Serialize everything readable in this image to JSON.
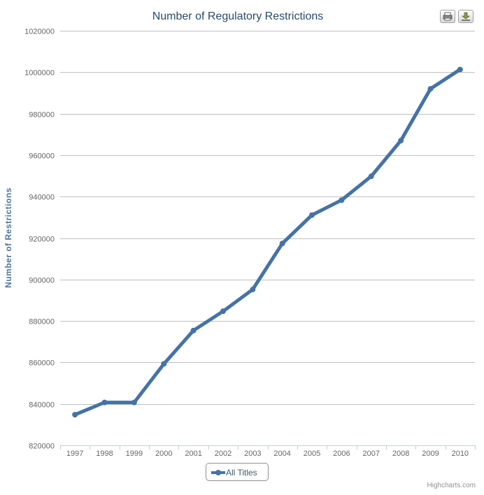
{
  "chart_data": {
    "type": "line",
    "title": "Number of Regulatory Restrictions",
    "ylabel": "Number of Restrictions",
    "xlabel": "",
    "categories": [
      "1997",
      "1998",
      "1999",
      "2000",
      "2001",
      "2002",
      "2003",
      "2004",
      "2005",
      "2006",
      "2007",
      "2008",
      "2009",
      "2010"
    ],
    "series": [
      {
        "name": "All Titles",
        "values": [
          834800,
          840700,
          840700,
          859300,
          875400,
          884700,
          895200,
          917400,
          931100,
          938300,
          949800,
          967000,
          992000,
          1001300
        ],
        "color": "#4572a7"
      }
    ],
    "ylim": [
      820000,
      1020000
    ],
    "yticks": [
      "820000",
      "840000",
      "860000",
      "880000",
      "900000",
      "920000",
      "940000",
      "960000",
      "980000",
      "1000000",
      "1020000"
    ],
    "grid": true,
    "legend_position": "bottom-center"
  },
  "credit": "Highcharts.com",
  "export_buttons": {
    "print_icon": "printer-icon",
    "download_icon": "download-icon"
  }
}
